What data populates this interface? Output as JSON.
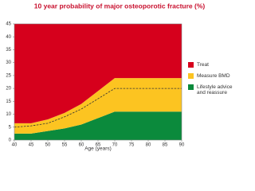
{
  "chart_data": {
    "type": "stacked-area",
    "title": "10 year probability of major osteoporotic fracture (%)",
    "x_label": "Age (years)",
    "x": [
      40,
      45,
      50,
      55,
      60,
      65,
      70,
      75,
      80,
      85,
      90
    ],
    "series": [
      {
        "name": "Lifestyle advice and reassure",
        "color": "#0b8a3c",
        "values": [
          2.5,
          2.5,
          3.5,
          4.5,
          6,
          8.5,
          11,
          11,
          11,
          11,
          11
        ]
      },
      {
        "name": "Measure BMD",
        "color": "#fcc421",
        "values": [
          4,
          4,
          4.5,
          6,
          8,
          10.5,
          13,
          13,
          13,
          13,
          13
        ]
      },
      {
        "name": "Treat",
        "color": "#d6001c",
        "values": [
          38.5,
          38.5,
          37,
          34.5,
          31,
          26,
          21,
          21,
          21,
          21,
          21
        ]
      }
    ],
    "threshold_line": {
      "values": [
        5,
        5.5,
        6.5,
        9,
        12,
        16,
        20,
        20,
        20,
        20,
        20
      ],
      "color": "#333333",
      "dashed": true
    },
    "xlim": [
      40,
      90
    ],
    "xticks": [
      40,
      45,
      50,
      55,
      60,
      65,
      70,
      75,
      80,
      85,
      90
    ],
    "ylim": [
      0,
      45
    ],
    "yticks": [
      0,
      5,
      10,
      15,
      20,
      25,
      30,
      35,
      40,
      45
    ]
  }
}
